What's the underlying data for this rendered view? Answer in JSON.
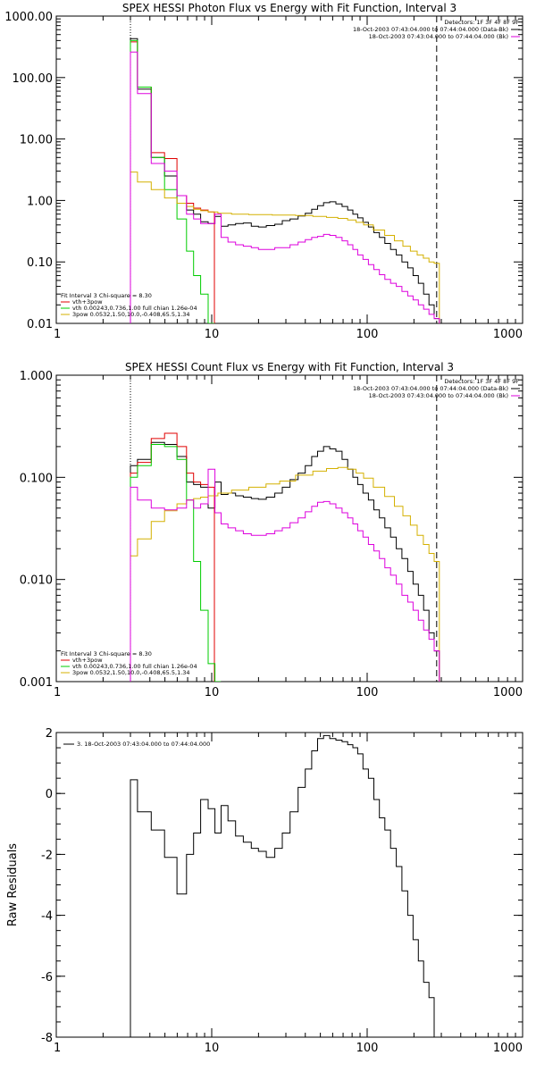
{
  "chart_data": [
    {
      "type": "line",
      "title": "SPEX HESSI Photon Flux vs Energy with Fit Function, Interval 3",
      "xlabel": "",
      "ylabel": "",
      "x_scale": "log",
      "y_scale": "log",
      "xlim": [
        1,
        1000
      ],
      "ylim": [
        0.01,
        1000
      ],
      "x_ticks": [
        1,
        10,
        100,
        1000
      ],
      "x_tick_labels": [
        "1",
        "10",
        "100",
        "1000"
      ],
      "y_ticks": [
        0.01,
        0.1,
        1,
        10,
        100,
        1000
      ],
      "y_tick_labels": [
        "0.01",
        "0.10",
        "1.00",
        "10.00",
        "100.00",
        "1000.00"
      ],
      "legend_top_right": [
        "Detectors: 1F 3F 4F 8F 9F",
        "18-Oct-2003 07:43:04.000 to 07:44:04.000 (Data-Bk)",
        "18-Oct-2003 07:43:04.000 to 07:44:04.000 (Bk)"
      ],
      "legend_bottom_left": [
        "Fit Interval 3   Chi-square = 8.30",
        "vth+3pow",
        "vth 0.00243,0.736,1.00  full chian 1.26e-04",
        "3pow 0.0532,1.50,10.0,-0.408,65.5,1.34"
      ],
      "vlines": {
        "dotted": 3,
        "dashed": 280
      },
      "series": [
        {
          "name": "18-Oct-2003 07:43:04.000 to 07:44:04.000 (Data-Bk)",
          "color": "#000000",
          "x": [
            3.0,
            3.7,
            4.5,
            5.5,
            6.5,
            7.3,
            8.0,
            9.0,
            10.0,
            11.0,
            12.0,
            13.5,
            15.0,
            17.0,
            19.0,
            21.0,
            24.0,
            27.0,
            30.0,
            34.0,
            38.0,
            42.0,
            46.0,
            50.0,
            55.0,
            60.0,
            66.0,
            72.0,
            78.0,
            84.0,
            90.0,
            98.0,
            106.0,
            115.0,
            125.0,
            135.0,
            148.0,
            160.0,
            175.0,
            190.0,
            205.0,
            222.0,
            240.0,
            260.0,
            280.0
          ],
          "y": [
            430,
            65,
            5.0,
            2.5,
            0.9,
            0.7,
            0.6,
            0.45,
            0.42,
            0.55,
            0.38,
            0.4,
            0.42,
            0.43,
            0.38,
            0.37,
            0.39,
            0.41,
            0.47,
            0.5,
            0.56,
            0.62,
            0.72,
            0.82,
            0.92,
            0.95,
            0.88,
            0.8,
            0.7,
            0.6,
            0.52,
            0.44,
            0.37,
            0.3,
            0.25,
            0.2,
            0.16,
            0.13,
            0.1,
            0.08,
            0.06,
            0.045,
            0.03,
            0.02,
            0.012
          ]
        },
        {
          "name": "vth+3pow",
          "color": "#e00000",
          "x": [
            3.0,
            3.7,
            4.5,
            5.5,
            6.5,
            7.3,
            8.0,
            9.0,
            10.0
          ],
          "y": [
            380,
            70,
            6.0,
            4.8,
            1.2,
            0.9,
            0.75,
            0.7,
            0.65
          ]
        },
        {
          "name": "vth 0.00243,0.736,1.00  full chian 1.26e-04",
          "color": "#00cc00",
          "x": [
            3.0,
            3.7,
            4.5,
            5.5,
            6.5,
            7.3,
            8.0,
            9.0,
            10.0
          ],
          "y": [
            400,
            70,
            5.0,
            1.5,
            0.5,
            0.15,
            0.06,
            0.03,
            0.01
          ]
        },
        {
          "name": "3pow 0.0532,1.50,10.0,-0.408,65.5,1.34",
          "color": "#d4b000",
          "x": [
            3.0,
            3.7,
            4.5,
            5.5,
            6.5,
            7.3,
            8.0,
            9.0,
            10.0,
            12.0,
            15.0,
            20.0,
            30.0,
            40.0,
            50.0,
            60.0,
            70.0,
            80.0,
            90.0,
            100.0,
            120.0,
            140.0,
            160.0,
            180.0,
            200.0,
            220.0,
            240.0,
            260.0,
            280.0
          ],
          "y": [
            2.9,
            2.0,
            1.5,
            1.1,
            0.9,
            0.8,
            0.72,
            0.68,
            0.65,
            0.62,
            0.6,
            0.59,
            0.58,
            0.57,
            0.55,
            0.53,
            0.51,
            0.48,
            0.44,
            0.4,
            0.33,
            0.27,
            0.22,
            0.18,
            0.15,
            0.13,
            0.115,
            0.1,
            0.095
          ]
        },
        {
          "name": "18-Oct-2003 07:43:04.000 to 07:44:04.000 (Bk)",
          "color": "#dd00dd",
          "x": [
            3.0,
            3.7,
            4.5,
            5.5,
            6.5,
            7.3,
            8.0,
            9.0,
            10.0,
            11.0,
            12.0,
            13.5,
            15.0,
            17.0,
            19.0,
            21.0,
            24.0,
            27.0,
            30.0,
            34.0,
            38.0,
            42.0,
            46.0,
            50.0,
            55.0,
            60.0,
            66.0,
            72.0,
            78.0,
            84.0,
            90.0,
            98.0,
            106.0,
            115.0,
            125.0,
            135.0,
            148.0,
            160.0,
            175.0,
            190.0,
            205.0,
            222.0,
            240.0,
            260.0,
            280.0
          ],
          "y": [
            260,
            55,
            4.0,
            3.0,
            1.2,
            0.6,
            0.5,
            0.42,
            0.42,
            0.6,
            0.25,
            0.21,
            0.19,
            0.18,
            0.17,
            0.16,
            0.16,
            0.17,
            0.17,
            0.19,
            0.21,
            0.23,
            0.25,
            0.26,
            0.28,
            0.27,
            0.25,
            0.22,
            0.19,
            0.16,
            0.13,
            0.11,
            0.09,
            0.075,
            0.062,
            0.052,
            0.045,
            0.04,
            0.033,
            0.028,
            0.024,
            0.02,
            0.017,
            0.014,
            0.012
          ]
        }
      ]
    },
    {
      "type": "line",
      "title": "SPEX HESSI Count Flux vs Energy with Fit Function, Interval 3",
      "xlabel": "",
      "ylabel": "",
      "x_scale": "log",
      "y_scale": "log",
      "xlim": [
        1,
        1000
      ],
      "ylim": [
        0.001,
        1
      ],
      "x_ticks": [
        1,
        10,
        100,
        1000
      ],
      "x_tick_labels": [
        "1",
        "10",
        "100",
        "1000"
      ],
      "y_ticks": [
        0.001,
        0.01,
        0.1,
        1
      ],
      "y_tick_labels": [
        "0.001",
        "0.010",
        "0.100",
        "1.000"
      ],
      "legend_top_right": [
        "Detectors: 1F 3F 4F 8F 9F",
        "18-Oct-2003 07:43:04.000 to 07:44:04.000 (Data-Bk)",
        "18-Oct-2003 07:43:04.000 to 07:44:04.000 (Bk)"
      ],
      "legend_bottom_left": [
        "Fit Interval 3   Chi-square = 8.30",
        "vth+3pow",
        "vth 0.00243,0.736,1.00  full chian 1.26e-04",
        "3pow 0.0532,1.50,10.0,-0.408,65.5,1.34"
      ],
      "vlines": {
        "dotted": 3,
        "dashed": 280
      },
      "series": [
        {
          "name": "18-Oct-2003 07:43:04.000 to 07:44:04.000 (Data-Bk)",
          "color": "#000000",
          "x": [
            3.0,
            3.7,
            4.5,
            5.5,
            6.5,
            7.3,
            8.0,
            9.0,
            10.0,
            11.0,
            12.0,
            13.5,
            15.0,
            17.0,
            19.0,
            21.0,
            24.0,
            27.0,
            30.0,
            34.0,
            38.0,
            42.0,
            46.0,
            50.0,
            55.0,
            60.0,
            66.0,
            72.0,
            78.0,
            84.0,
            90.0,
            98.0,
            106.0,
            115.0,
            125.0,
            135.0,
            148.0,
            160.0,
            175.0,
            190.0,
            205.0,
            222.0,
            240.0,
            260.0,
            280.0
          ],
          "y": [
            0.13,
            0.15,
            0.22,
            0.21,
            0.16,
            0.09,
            0.085,
            0.08,
            0.05,
            0.09,
            0.068,
            0.07,
            0.066,
            0.064,
            0.062,
            0.061,
            0.064,
            0.07,
            0.08,
            0.095,
            0.11,
            0.13,
            0.16,
            0.18,
            0.2,
            0.19,
            0.18,
            0.15,
            0.12,
            0.1,
            0.085,
            0.07,
            0.06,
            0.048,
            0.04,
            0.032,
            0.026,
            0.02,
            0.016,
            0.012,
            0.009,
            0.007,
            0.005,
            0.003,
            0.002
          ]
        },
        {
          "name": "vth+3pow",
          "color": "#e00000",
          "x": [
            3.0,
            3.7,
            4.5,
            5.5,
            6.5,
            7.3,
            8.0,
            9.0,
            10.0
          ],
          "y": [
            0.11,
            0.14,
            0.24,
            0.27,
            0.2,
            0.11,
            0.09,
            0.085,
            0.08
          ]
        },
        {
          "name": "vth 0.00243,0.736,1.00  full chian 1.26e-04",
          "color": "#00cc00",
          "x": [
            3.0,
            3.7,
            4.5,
            5.5,
            6.5,
            7.3,
            8.0,
            9.0,
            10.0,
            11.0
          ],
          "y": [
            0.1,
            0.13,
            0.21,
            0.2,
            0.15,
            0.06,
            0.015,
            0.005,
            0.0015,
            0.0008
          ]
        },
        {
          "name": "3pow 0.0532,1.50,10.0,-0.408,65.5,1.34",
          "color": "#d4b000",
          "x": [
            3.0,
            3.7,
            4.5,
            5.5,
            6.5,
            7.3,
            8.0,
            9.0,
            10.0,
            12.0,
            15.0,
            20.0,
            25.0,
            30.0,
            40.0,
            50.0,
            60.0,
            70.0,
            80.0,
            90.0,
            100.0,
            120.0,
            140.0,
            160.0,
            180.0,
            200.0,
            220.0,
            240.0,
            260.0,
            280.0
          ],
          "y": [
            0.017,
            0.025,
            0.037,
            0.047,
            0.055,
            0.06,
            0.062,
            0.064,
            0.066,
            0.07,
            0.075,
            0.08,
            0.086,
            0.092,
            0.105,
            0.115,
            0.122,
            0.125,
            0.12,
            0.11,
            0.098,
            0.08,
            0.065,
            0.052,
            0.042,
            0.034,
            0.027,
            0.022,
            0.018,
            0.015
          ]
        },
        {
          "name": "18-Oct-2003 07:43:04.000 to 07:44:04.000 (Bk)",
          "color": "#dd00dd",
          "x": [
            3.0,
            3.7,
            4.5,
            5.5,
            6.5,
            7.3,
            8.0,
            9.0,
            10.0,
            11.0,
            12.0,
            13.5,
            15.0,
            17.0,
            19.0,
            21.0,
            24.0,
            27.0,
            30.0,
            34.0,
            38.0,
            42.0,
            46.0,
            50.0,
            55.0,
            60.0,
            66.0,
            72.0,
            78.0,
            84.0,
            90.0,
            98.0,
            106.0,
            115.0,
            125.0,
            135.0,
            148.0,
            160.0,
            175.0,
            190.0,
            205.0,
            222.0,
            240.0,
            260.0,
            280.0
          ],
          "y": [
            0.08,
            0.06,
            0.05,
            0.048,
            0.05,
            0.06,
            0.05,
            0.055,
            0.12,
            0.045,
            0.035,
            0.032,
            0.03,
            0.028,
            0.027,
            0.027,
            0.028,
            0.03,
            0.032,
            0.036,
            0.04,
            0.046,
            0.052,
            0.057,
            0.058,
            0.055,
            0.05,
            0.045,
            0.04,
            0.035,
            0.03,
            0.026,
            0.022,
            0.019,
            0.016,
            0.013,
            0.011,
            0.009,
            0.007,
            0.006,
            0.005,
            0.004,
            0.0032,
            0.0026,
            0.002
          ]
        }
      ]
    },
    {
      "type": "line",
      "title": "",
      "xlabel": "",
      "ylabel": "Raw Residuals",
      "x_scale": "log",
      "y_scale": "linear",
      "xlim": [
        1,
        1000
      ],
      "ylim": [
        -8,
        2
      ],
      "x_ticks": [
        1,
        10,
        100,
        1000
      ],
      "x_tick_labels": [
        "1",
        "10",
        "100",
        "1000"
      ],
      "y_ticks": [
        -8,
        -6,
        -4,
        -2,
        0,
        2
      ],
      "y_tick_labels": [
        "-8",
        "-6",
        "-4",
        "-2",
        "0",
        "2"
      ],
      "legend_top_left": [
        "3. 18-Oct-2003 07:43:04.000 to 07:44:04.000"
      ],
      "series": [
        {
          "name": "3. 18-Oct-2003 07:43:04.000 to 07:44:04.000",
          "color": "#000000",
          "x": [
            3.0,
            3.7,
            4.5,
            5.5,
            6.5,
            7.3,
            8.0,
            9.0,
            10.0,
            11.0,
            12.0,
            13.5,
            15.0,
            17.0,
            19.0,
            21.0,
            24.0,
            27.0,
            30.0,
            34.0,
            38.0,
            42.0,
            46.0,
            50.0,
            55.0,
            60.0,
            66.0,
            72.0,
            78.0,
            84.0,
            90.0,
            98.0,
            106.0,
            115.0,
            125.0,
            135.0,
            148.0,
            160.0,
            175.0,
            190.0,
            205.0,
            222.0,
            240.0,
            260.0,
            280.0
          ],
          "y": [
            0.45,
            -0.6,
            -1.2,
            -2.1,
            -3.3,
            -2.0,
            -1.3,
            -0.2,
            -0.5,
            -1.3,
            -0.4,
            -0.9,
            -1.4,
            -1.6,
            -1.8,
            -1.9,
            -2.1,
            -1.8,
            -1.3,
            -0.6,
            0.2,
            0.8,
            1.4,
            1.8,
            1.9,
            1.8,
            1.75,
            1.7,
            1.6,
            1.5,
            1.3,
            0.8,
            0.5,
            -0.2,
            -0.8,
            -1.2,
            -1.8,
            -2.4,
            -3.2,
            -4.0,
            -4.8,
            -5.5,
            -6.2,
            -6.7,
            -8.0
          ]
        }
      ]
    }
  ]
}
